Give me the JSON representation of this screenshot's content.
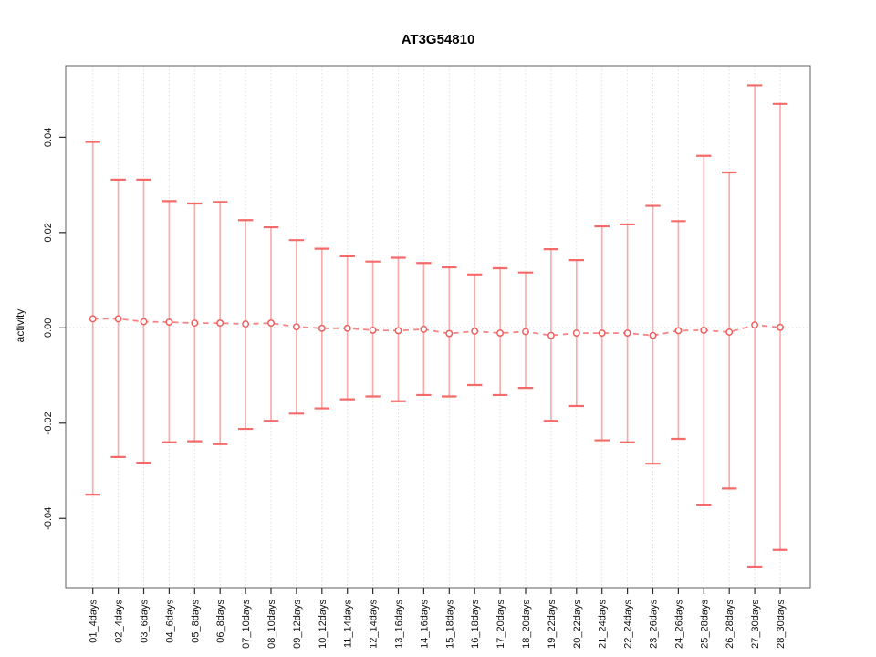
{
  "chart_data": {
    "type": "line",
    "subtype": "points-with-error-bars",
    "title": "AT3G54810",
    "xlabel": "",
    "ylabel": "activity",
    "legend": "none",
    "grid": {
      "vertical_dotted_per_category": true,
      "horizontal_dotted_zero_line": true
    },
    "ylim": [
      -0.0545,
      0.055
    ],
    "yticks": [
      -0.04,
      -0.02,
      0,
      0.02,
      0.04
    ],
    "ytick_labels": [
      "-0.04",
      "-0.02",
      "0.00",
      "0.02",
      "0.04"
    ],
    "categories": [
      "01_4days",
      "02_4days",
      "03_6days",
      "04_6days",
      "05_8days",
      "06_8days",
      "07_10days",
      "08_10days",
      "09_12days",
      "10_12days",
      "11_14days",
      "12_14days",
      "13_16days",
      "14_16days",
      "15_18days",
      "16_18days",
      "17_20days",
      "18_20days",
      "19_22days",
      "20_22days",
      "21_24days",
      "22_24days",
      "23_26days",
      "24_26days",
      "25_28days",
      "26_28days",
      "27_30days",
      "28_30days"
    ],
    "series": [
      {
        "name": "mean",
        "values": [
          0.0019,
          0.0019,
          0.0013,
          0.0012,
          0.001,
          0.001,
          0.0008,
          0.001,
          0.0002,
          -0.0001,
          -0.0001,
          -0.0005,
          -0.0006,
          -0.0003,
          -0.0012,
          -0.0007,
          -0.0011,
          -0.0008,
          -0.0016,
          -0.0011,
          -0.0011,
          -0.0011,
          -0.0016,
          -0.0006,
          -0.0005,
          -0.0009,
          0.0006,
          0.0001
        ]
      },
      {
        "name": "upper_error",
        "values": [
          0.039,
          0.0311,
          0.0311,
          0.0266,
          0.0261,
          0.0264,
          0.0226,
          0.0211,
          0.0184,
          0.0166,
          0.015,
          0.0139,
          0.0147,
          0.0136,
          0.0127,
          0.0112,
          0.0125,
          0.0116,
          0.0165,
          0.0142,
          0.0213,
          0.0217,
          0.0256,
          0.0224,
          0.0361,
          0.0326,
          0.0509,
          0.047
        ]
      },
      {
        "name": "lower_error",
        "values": [
          -0.035,
          -0.0271,
          -0.0283,
          -0.024,
          -0.0238,
          -0.0244,
          -0.0212,
          -0.0195,
          -0.018,
          -0.0169,
          -0.015,
          -0.0144,
          -0.0154,
          -0.0141,
          -0.0144,
          -0.012,
          -0.0141,
          -0.0126,
          -0.0195,
          -0.0164,
          -0.0236,
          -0.024,
          -0.0285,
          -0.0233,
          -0.0371,
          -0.0337,
          -0.0501,
          -0.0466
        ]
      }
    ],
    "colors": {
      "error_bar": "#f8a0a0",
      "error_cap": "#f35b5b",
      "point_stroke": "#ef5e5e",
      "point_fill": "#ffffff",
      "connector": "#f17979",
      "grid": "#e0e0e0",
      "zero_line": "#cccccc",
      "box": "#7a7a7a",
      "axis": "#2b2b2b",
      "text": "#111111",
      "background": "#ffffff"
    }
  }
}
